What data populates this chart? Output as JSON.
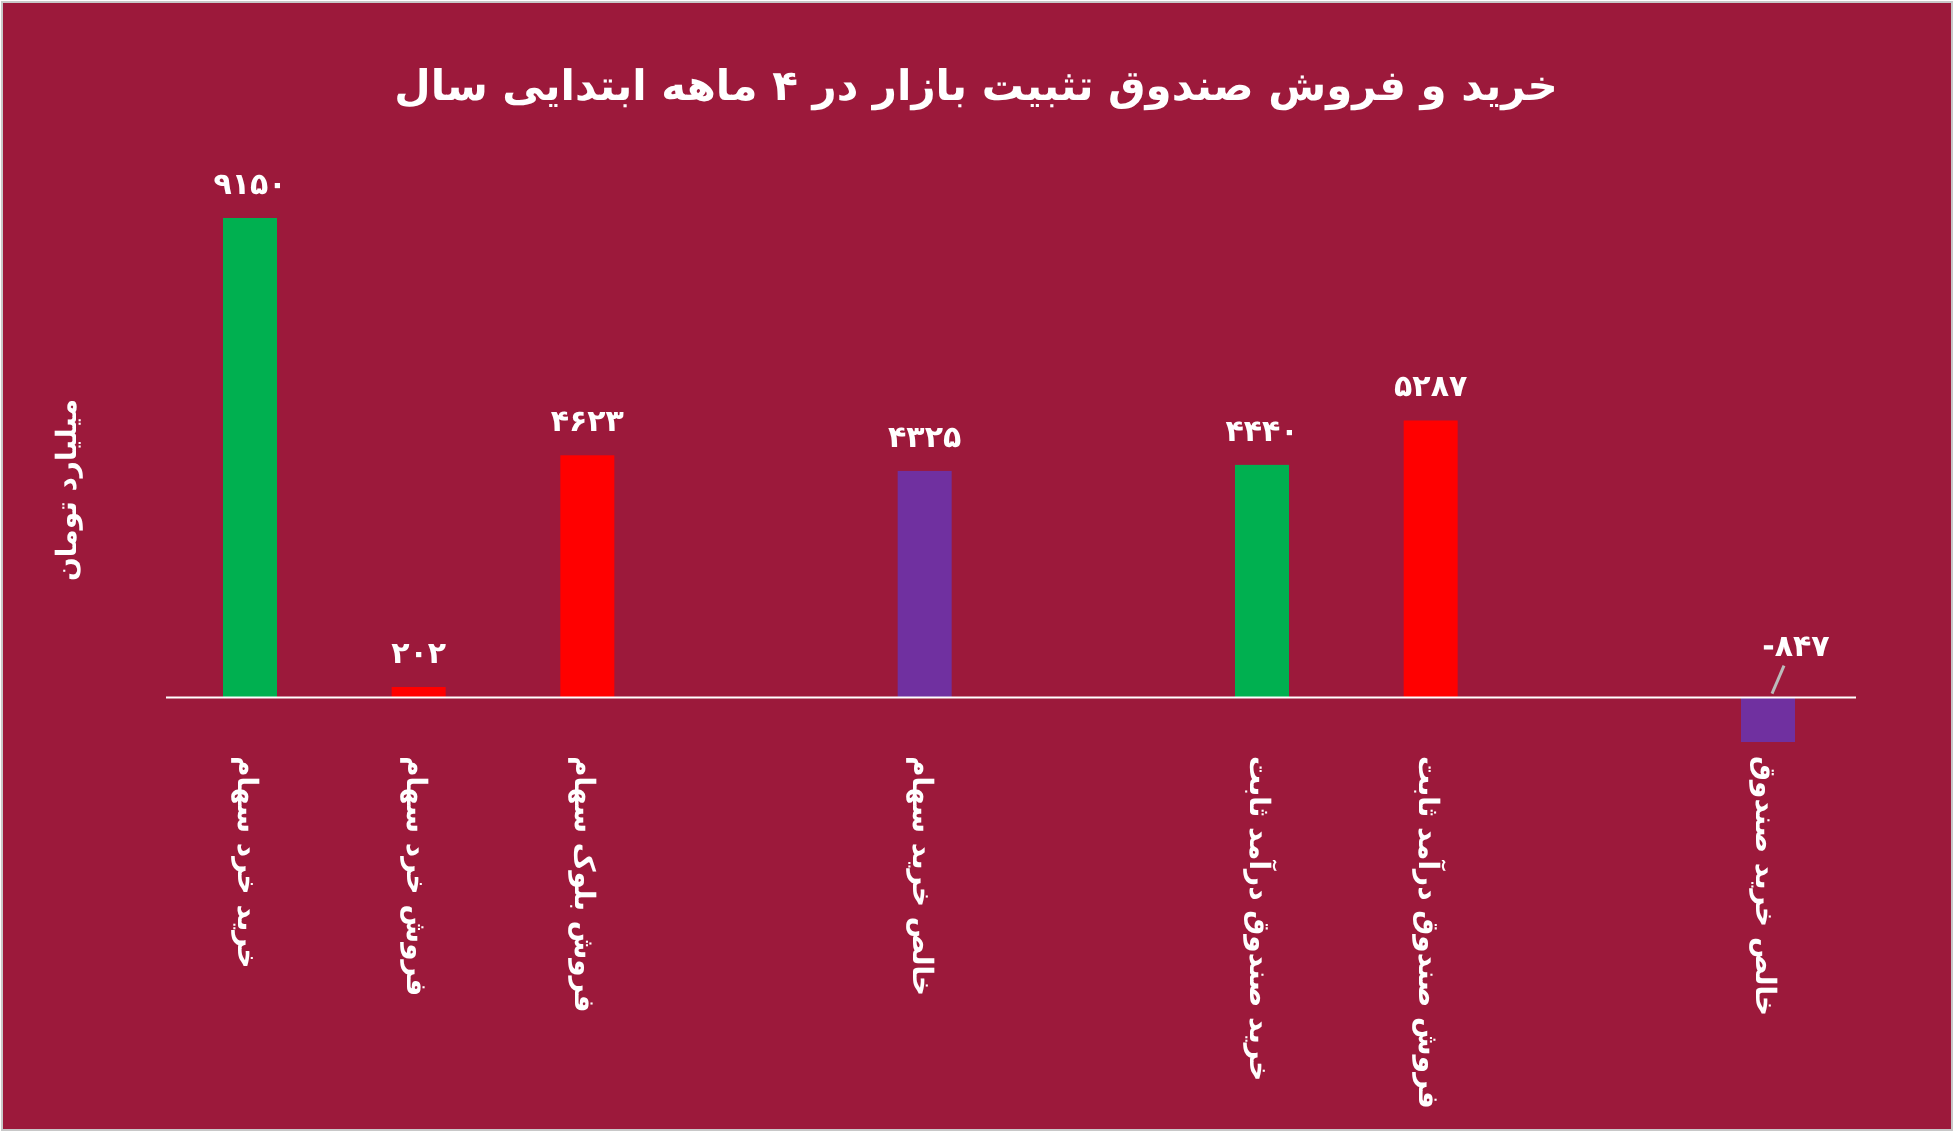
{
  "chart_data": {
    "type": "bar",
    "title": "خرید و فروش صندوق تثبیت بازار در ۴ ماهه ابتدایی سال",
    "ylabel": "میلیارد تومان",
    "categories": [
      "خرید خرد سهام",
      "فروش خرد سهام",
      "فروش بلوک سهام",
      null,
      "خالص خرید سهام",
      null,
      "خرید صندوق درآمد ثابت",
      "فروش صندوق درآمد ثابت",
      null,
      "خالص خرید صندوق"
    ],
    "values": [
      9150,
      202,
      4623,
      null,
      4325,
      null,
      4440,
      5287,
      null,
      -847
    ],
    "colors": [
      "#00b050",
      "#ff0000",
      "#ff0000",
      null,
      "#7030a0",
      null,
      "#00b050",
      "#ff0000",
      null,
      "#7030a0"
    ],
    "value_labels": [
      "۹۱۵۰",
      "۲۰۲",
      "۴۶۲۳",
      null,
      "۴۳۲۵",
      null,
      "۴۴۴۰",
      "۵۲۸۷",
      null,
      "-۸۴۷"
    ]
  }
}
